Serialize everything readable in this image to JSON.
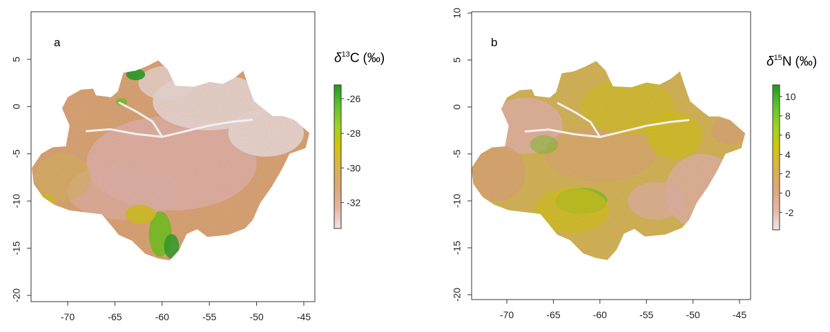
{
  "chart_data": [
    {
      "type": "heatmap",
      "panel_label": "a",
      "legend_title": {
        "symbol": "δ",
        "superscript": "13",
        "element": "C",
        "unit": "(‰)"
      },
      "xlim": [
        -74,
        -44
      ],
      "ylim": [
        -21,
        10
      ],
      "x_ticks": [
        "-70",
        "-65",
        "-60",
        "-55",
        "-50",
        "-45"
      ],
      "y_ticks": [
        "5",
        "0",
        "-5",
        "-10",
        "-15",
        "-20"
      ],
      "y_tick_values": [
        5,
        0,
        -5,
        -10,
        -15,
        -20
      ],
      "x_tick_values": [
        -70,
        -65,
        -60,
        -55,
        -50,
        -45
      ],
      "colorbar": {
        "range": [
          -33.5,
          -25.2
        ],
        "ticks": [
          "-26",
          "-28",
          "-30",
          "-32"
        ],
        "tick_values": [
          -26,
          -28,
          -30,
          -32
        ],
        "colors": [
          "#f0e4e4",
          "#e8b5a1",
          "#dfa678",
          "#dcb24b",
          "#d3c50b",
          "#9cd320",
          "#5ec32d",
          "#1e9a1e"
        ]
      }
    },
    {
      "type": "heatmap",
      "panel_label": "b",
      "legend_title": {
        "symbol": "δ",
        "superscript": "15",
        "element": "N",
        "unit": "(‰)"
      },
      "xlim": [
        -74,
        -44
      ],
      "ylim": [
        -21,
        10
      ],
      "x_ticks": [
        "-70",
        "-65",
        "-60",
        "-55",
        "-50",
        "-45"
      ],
      "y_ticks": [
        "10",
        "5",
        "0",
        "-5",
        "-10",
        "-15",
        "-20"
      ],
      "y_tick_values": [
        10,
        5,
        0,
        -5,
        -10,
        -15,
        -20
      ],
      "x_tick_values": [
        -70,
        -65,
        -60,
        -55,
        -50,
        -45
      ],
      "colorbar": {
        "range": [
          -3.8,
          11.2
        ],
        "ticks": [
          "10",
          "8",
          "6",
          "4",
          "2",
          "0",
          "-2"
        ],
        "tick_values": [
          10,
          8,
          6,
          4,
          2,
          0,
          -2
        ],
        "colors": [
          "#f0e4e4",
          "#e8b5a1",
          "#dfa678",
          "#dcb24b",
          "#d3c50b",
          "#9cd320",
          "#5ec32d",
          "#1e9a1e"
        ]
      }
    }
  ],
  "map_colors": {
    "low": "#e6b4a8",
    "mid": "#dfa878",
    "warm": "#d9b85a",
    "yellow": "#d6c41c",
    "green": "#7cc229",
    "dark_green": "#2aa02a",
    "pale": "#eedad6",
    "river": "#ffffff"
  }
}
